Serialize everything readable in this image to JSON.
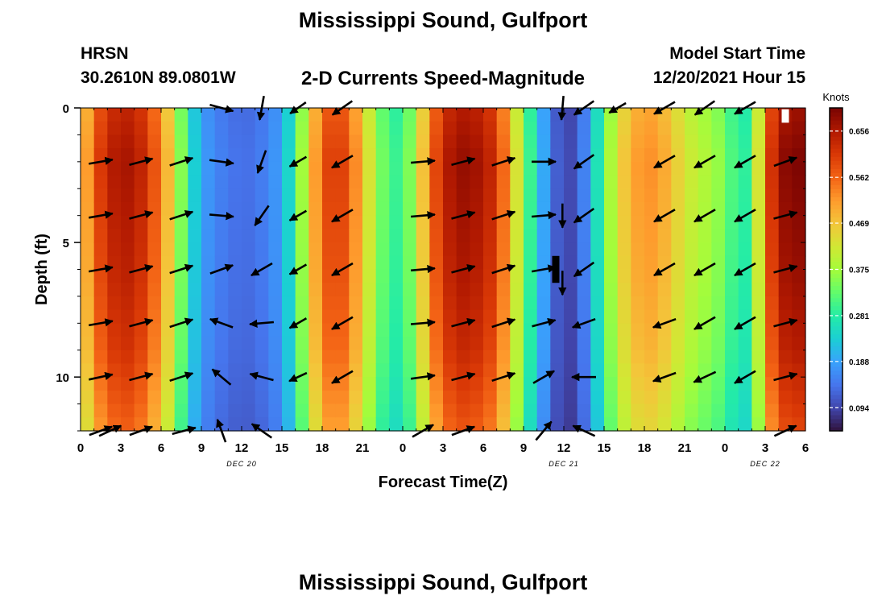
{
  "header": {
    "title": "Mississippi Sound, Gulfport",
    "station": "HRSN",
    "coords": "30.2610N  89.0801W",
    "subtitle": "2-D Currents Speed-Magnitude",
    "start_label": "Model Start Time",
    "start_value": "12/20/2021 Hour 15"
  },
  "footer": {
    "repeat_title": "Mississippi Sound, Gulfport"
  },
  "chart_data": {
    "type": "heatmap",
    "xlabel": "Forecast Time(Z)",
    "ylabel": "Depth (ft)",
    "xlim": [
      0,
      54
    ],
    "ylim": [
      0,
      12
    ],
    "y_inverted": true,
    "x_ticks": [
      0,
      3,
      6,
      9,
      12,
      15,
      18,
      21,
      24,
      27,
      30,
      33,
      36,
      39,
      42,
      45,
      48,
      51,
      54
    ],
    "x_tick_labels": [
      "0",
      "3",
      "6",
      "9",
      "12",
      "15",
      "18",
      "21",
      "0",
      "3",
      "6",
      "9",
      "12",
      "15",
      "18",
      "21",
      "0",
      "3",
      "6"
    ],
    "y_ticks": [
      0,
      5,
      10
    ],
    "y_tick_labels": [
      "0",
      "5",
      "10"
    ],
    "date_labels": [
      {
        "x": 12,
        "text": "DEC 20"
      },
      {
        "x": 36,
        "text": "DEC 21"
      },
      {
        "x": 51,
        "text": "DEC 22"
      }
    ],
    "colorbar": {
      "title": "Knots",
      "range": [
        0.047,
        0.703
      ],
      "tick_values": [
        0.094,
        0.188,
        0.281,
        0.375,
        0.469,
        0.562,
        0.656
      ],
      "tick_labels": [
        "0.094",
        "0.188",
        "0.281",
        "0.375",
        "0.469",
        "0.562",
        "0.656"
      ],
      "colors": [
        "#30123b",
        "#4145ab",
        "#4675ed",
        "#39a2fc",
        "#1bcfd4",
        "#24eca6",
        "#61fc6c",
        "#a4fc3b",
        "#d1e834",
        "#f3c63a",
        "#fe9b2d",
        "#f36315",
        "#d93806",
        "#b11901",
        "#7a0402"
      ]
    },
    "speed_profile": {
      "hours": [
        0,
        1,
        2,
        3,
        4,
        5,
        6,
        7,
        8,
        9,
        10,
        11,
        12,
        13,
        14,
        15,
        16,
        17,
        18,
        19,
        20,
        21,
        22,
        23,
        24,
        25,
        26,
        27,
        28,
        29,
        30,
        31,
        32,
        33,
        34,
        35,
        36,
        37,
        38,
        39,
        40,
        41,
        42,
        43,
        44,
        45,
        46,
        47,
        48,
        49,
        50,
        51,
        52,
        53,
        54
      ],
      "speeds": [
        0.45,
        0.58,
        0.64,
        0.67,
        0.66,
        0.62,
        0.54,
        0.43,
        0.28,
        0.19,
        0.16,
        0.145,
        0.135,
        0.14,
        0.16,
        0.19,
        0.3,
        0.45,
        0.58,
        0.62,
        0.58,
        0.48,
        0.38,
        0.3,
        0.3,
        0.4,
        0.55,
        0.64,
        0.68,
        0.68,
        0.66,
        0.62,
        0.5,
        0.36,
        0.24,
        0.15,
        0.09,
        0.11,
        0.2,
        0.33,
        0.44,
        0.5,
        0.53,
        0.52,
        0.48,
        0.43,
        0.4,
        0.38,
        0.35,
        0.28,
        0.3,
        0.56,
        0.68,
        0.7,
        0.7
      ]
    },
    "depth_factors": [
      {
        "depth": 0,
        "factor": 0.96
      },
      {
        "depth": 2,
        "factor": 1.0
      },
      {
        "depth": 6,
        "factor": 0.97
      },
      {
        "depth": 9,
        "factor": 0.93
      },
      {
        "depth": 12,
        "factor": 0.85
      }
    ],
    "vector_hours": [
      1.5,
      4.5,
      7.5,
      10.5,
      13.5,
      19.5,
      25.5,
      28.5,
      31.5,
      34.5,
      37.5,
      43.5,
      46.5,
      49.5,
      52.5
    ],
    "vector_depths": [
      0,
      2,
      4,
      6,
      8,
      10,
      12
    ],
    "vectors": [
      {
        "hour": 1.5,
        "depth": 0,
        "angle_deg": 0,
        "len": 0
      },
      {
        "hour": 1.5,
        "depth": 2,
        "angle_deg": 10,
        "len": 1
      },
      {
        "hour": 1.5,
        "depth": 4,
        "angle_deg": 10,
        "len": 1
      },
      {
        "hour": 1.5,
        "depth": 6,
        "angle_deg": 10,
        "len": 1
      },
      {
        "hour": 1.5,
        "depth": 8,
        "angle_deg": 10,
        "len": 1
      },
      {
        "hour": 1.5,
        "depth": 10,
        "angle_deg": 12,
        "len": 1
      },
      {
        "hour": 1.5,
        "depth": 12,
        "angle_deg": 20,
        "len": 1
      },
      {
        "hour": 4.5,
        "depth": 0,
        "angle_deg": 0,
        "len": 0
      },
      {
        "hour": 4.5,
        "depth": 2,
        "angle_deg": 15,
        "len": 1
      },
      {
        "hour": 4.5,
        "depth": 4,
        "angle_deg": 15,
        "len": 1
      },
      {
        "hour": 4.5,
        "depth": 6,
        "angle_deg": 15,
        "len": 1
      },
      {
        "hour": 4.5,
        "depth": 8,
        "angle_deg": 15,
        "len": 1
      },
      {
        "hour": 4.5,
        "depth": 10,
        "angle_deg": 15,
        "len": 1
      },
      {
        "hour": 4.5,
        "depth": 12,
        "angle_deg": 20,
        "len": 1
      },
      {
        "hour": 7.5,
        "depth": 0,
        "angle_deg": 0,
        "len": 0
      },
      {
        "hour": 7.5,
        "depth": 2,
        "angle_deg": 18,
        "len": 1
      },
      {
        "hour": 7.5,
        "depth": 4,
        "angle_deg": 18,
        "len": 1
      },
      {
        "hour": 7.5,
        "depth": 6,
        "angle_deg": 18,
        "len": 1
      },
      {
        "hour": 7.5,
        "depth": 8,
        "angle_deg": 18,
        "len": 1
      },
      {
        "hour": 7.5,
        "depth": 10,
        "angle_deg": 18,
        "len": 1
      },
      {
        "hour": 7.5,
        "depth": 12,
        "angle_deg": 0,
        "len": 0
      },
      {
        "hour": 10.5,
        "depth": 0,
        "angle_deg": -15,
        "len": 1
      },
      {
        "hour": 10.5,
        "depth": 2,
        "angle_deg": -8,
        "len": 1
      },
      {
        "hour": 10.5,
        "depth": 4,
        "angle_deg": -5,
        "len": 1
      },
      {
        "hour": 10.5,
        "depth": 6,
        "angle_deg": 20,
        "len": 1
      },
      {
        "hour": 10.5,
        "depth": 8,
        "angle_deg": 160,
        "len": 1
      },
      {
        "hour": 10.5,
        "depth": 10,
        "angle_deg": 140,
        "len": 1
      },
      {
        "hour": 10.5,
        "depth": 12,
        "angle_deg": 110,
        "len": 1
      },
      {
        "hour": 13.5,
        "depth": 0,
        "angle_deg": -100,
        "len": 1
      },
      {
        "hour": 13.5,
        "depth": 2,
        "angle_deg": -110,
        "len": 1
      },
      {
        "hour": 13.5,
        "depth": 4,
        "angle_deg": -125,
        "len": 1
      },
      {
        "hour": 13.5,
        "depth": 6,
        "angle_deg": -150,
        "len": 1
      },
      {
        "hour": 13.5,
        "depth": 8,
        "angle_deg": -175,
        "len": 1
      },
      {
        "hour": 13.5,
        "depth": 10,
        "angle_deg": 165,
        "len": 1
      },
      {
        "hour": 13.5,
        "depth": 12,
        "angle_deg": 145,
        "len": 1
      },
      {
        "hour": 19.5,
        "depth": 0,
        "angle_deg": -145,
        "len": 1
      },
      {
        "hour": 19.5,
        "depth": 2,
        "angle_deg": -150,
        "len": 1
      },
      {
        "hour": 19.5,
        "depth": 4,
        "angle_deg": -150,
        "len": 1
      },
      {
        "hour": 19.5,
        "depth": 6,
        "angle_deg": -150,
        "len": 1
      },
      {
        "hour": 19.5,
        "depth": 8,
        "angle_deg": -150,
        "len": 1
      },
      {
        "hour": 19.5,
        "depth": 10,
        "angle_deg": -150,
        "len": 1
      },
      {
        "hour": 19.5,
        "depth": 12,
        "angle_deg": 0,
        "len": 0
      },
      {
        "hour": 25.5,
        "depth": 0,
        "angle_deg": 0,
        "len": 0
      },
      {
        "hour": 25.5,
        "depth": 2,
        "angle_deg": 5,
        "len": 1
      },
      {
        "hour": 25.5,
        "depth": 4,
        "angle_deg": 5,
        "len": 1
      },
      {
        "hour": 25.5,
        "depth": 6,
        "angle_deg": 5,
        "len": 1
      },
      {
        "hour": 25.5,
        "depth": 8,
        "angle_deg": 5,
        "len": 1
      },
      {
        "hour": 25.5,
        "depth": 10,
        "angle_deg": 8,
        "len": 1
      },
      {
        "hour": 25.5,
        "depth": 12,
        "angle_deg": 30,
        "len": 1
      },
      {
        "hour": 28.5,
        "depth": 0,
        "angle_deg": 0,
        "len": 0
      },
      {
        "hour": 28.5,
        "depth": 2,
        "angle_deg": 15,
        "len": 1
      },
      {
        "hour": 28.5,
        "depth": 4,
        "angle_deg": 15,
        "len": 1
      },
      {
        "hour": 28.5,
        "depth": 6,
        "angle_deg": 15,
        "len": 1
      },
      {
        "hour": 28.5,
        "depth": 8,
        "angle_deg": 15,
        "len": 1
      },
      {
        "hour": 28.5,
        "depth": 10,
        "angle_deg": 15,
        "len": 1
      },
      {
        "hour": 28.5,
        "depth": 12,
        "angle_deg": 20,
        "len": 1
      },
      {
        "hour": 31.5,
        "depth": 0,
        "angle_deg": 0,
        "len": 0
      },
      {
        "hour": 31.5,
        "depth": 2,
        "angle_deg": 18,
        "len": 1
      },
      {
        "hour": 31.5,
        "depth": 4,
        "angle_deg": 18,
        "len": 1
      },
      {
        "hour": 31.5,
        "depth": 6,
        "angle_deg": 18,
        "len": 1
      },
      {
        "hour": 31.5,
        "depth": 8,
        "angle_deg": 18,
        "len": 1
      },
      {
        "hour": 31.5,
        "depth": 10,
        "angle_deg": 18,
        "len": 1
      },
      {
        "hour": 31.5,
        "depth": 12,
        "angle_deg": 0,
        "len": 0
      },
      {
        "hour": 34.5,
        "depth": 0,
        "angle_deg": 0,
        "len": 0
      },
      {
        "hour": 34.5,
        "depth": 2,
        "angle_deg": 0,
        "len": 1
      },
      {
        "hour": 34.5,
        "depth": 4,
        "angle_deg": 5,
        "len": 1
      },
      {
        "hour": 34.5,
        "depth": 6,
        "angle_deg": 10,
        "len": 1
      },
      {
        "hour": 34.5,
        "depth": 8,
        "angle_deg": 15,
        "len": 1
      },
      {
        "hour": 34.5,
        "depth": 10,
        "angle_deg": 30,
        "len": 1
      },
      {
        "hour": 34.5,
        "depth": 12,
        "angle_deg": 50,
        "len": 1
      },
      {
        "hour": 37.5,
        "depth": 0,
        "angle_deg": -145,
        "len": 1
      },
      {
        "hour": 37.5,
        "depth": 2,
        "angle_deg": -145,
        "len": 1
      },
      {
        "hour": 37.5,
        "depth": 4,
        "angle_deg": -145,
        "len": 1
      },
      {
        "hour": 37.5,
        "depth": 6,
        "angle_deg": -145,
        "len": 1
      },
      {
        "hour": 37.5,
        "depth": 8,
        "angle_deg": -160,
        "len": 1
      },
      {
        "hour": 37.5,
        "depth": 10,
        "angle_deg": 180,
        "len": 1
      },
      {
        "hour": 37.5,
        "depth": 12,
        "angle_deg": 155,
        "len": 1
      },
      {
        "hour": 43.5,
        "depth": 0,
        "angle_deg": -150,
        "len": 1
      },
      {
        "hour": 43.5,
        "depth": 2,
        "angle_deg": -150,
        "len": 1
      },
      {
        "hour": 43.5,
        "depth": 4,
        "angle_deg": -150,
        "len": 1
      },
      {
        "hour": 43.5,
        "depth": 6,
        "angle_deg": -150,
        "len": 1
      },
      {
        "hour": 43.5,
        "depth": 8,
        "angle_deg": -160,
        "len": 1
      },
      {
        "hour": 43.5,
        "depth": 10,
        "angle_deg": -160,
        "len": 1
      },
      {
        "hour": 43.5,
        "depth": 12,
        "angle_deg": 0,
        "len": 0
      },
      {
        "hour": 46.5,
        "depth": 0,
        "angle_deg": -145,
        "len": 1
      },
      {
        "hour": 46.5,
        "depth": 2,
        "angle_deg": -150,
        "len": 1
      },
      {
        "hour": 46.5,
        "depth": 4,
        "angle_deg": -150,
        "len": 1
      },
      {
        "hour": 46.5,
        "depth": 6,
        "angle_deg": -150,
        "len": 1
      },
      {
        "hour": 46.5,
        "depth": 8,
        "angle_deg": -150,
        "len": 1
      },
      {
        "hour": 46.5,
        "depth": 10,
        "angle_deg": -155,
        "len": 1
      },
      {
        "hour": 46.5,
        "depth": 12,
        "angle_deg": 0,
        "len": 0
      },
      {
        "hour": 49.5,
        "depth": 0,
        "angle_deg": -150,
        "len": 1
      },
      {
        "hour": 49.5,
        "depth": 2,
        "angle_deg": -150,
        "len": 1
      },
      {
        "hour": 49.5,
        "depth": 4,
        "angle_deg": -150,
        "len": 1
      },
      {
        "hour": 49.5,
        "depth": 6,
        "angle_deg": -150,
        "len": 1
      },
      {
        "hour": 49.5,
        "depth": 8,
        "angle_deg": -150,
        "len": 1
      },
      {
        "hour": 49.5,
        "depth": 10,
        "angle_deg": -150,
        "len": 1
      },
      {
        "hour": 49.5,
        "depth": 12,
        "angle_deg": 0,
        "len": 0
      },
      {
        "hour": 52.5,
        "depth": 0,
        "angle_deg": 0,
        "len": 0
      },
      {
        "hour": 52.5,
        "depth": 2,
        "angle_deg": 20,
        "len": 1
      },
      {
        "hour": 52.5,
        "depth": 4,
        "angle_deg": 15,
        "len": 1
      },
      {
        "hour": 52.5,
        "depth": 6,
        "angle_deg": 15,
        "len": 1
      },
      {
        "hour": 52.5,
        "depth": 8,
        "angle_deg": 15,
        "len": 1
      },
      {
        "hour": 52.5,
        "depth": 10,
        "angle_deg": 15,
        "len": 1
      },
      {
        "hour": 52.5,
        "depth": 12,
        "angle_deg": 25,
        "len": 1
      }
    ],
    "extra_vectors": [
      {
        "hour": 2.2,
        "depth": 12,
        "angle_deg": 25,
        "len": 1
      },
      {
        "hour": 7.7,
        "depth": 12,
        "angle_deg": 15,
        "len": 1
      },
      {
        "hour": 16.2,
        "depth": 0,
        "angle_deg": -145,
        "len": 0.8
      },
      {
        "hour": 16.2,
        "depth": 2,
        "angle_deg": -150,
        "len": 0.8
      },
      {
        "hour": 16.2,
        "depth": 4,
        "angle_deg": -150,
        "len": 0.8
      },
      {
        "hour": 16.2,
        "depth": 6,
        "angle_deg": -150,
        "len": 0.8
      },
      {
        "hour": 16.2,
        "depth": 8,
        "angle_deg": -150,
        "len": 0.8
      },
      {
        "hour": 16.2,
        "depth": 10,
        "angle_deg": -155,
        "len": 0.8
      },
      {
        "hour": 35.9,
        "depth": 0,
        "angle_deg": -95,
        "len": 1
      },
      {
        "hour": 35.9,
        "depth": 4,
        "angle_deg": -90,
        "len": 1
      },
      {
        "hour": 35.9,
        "depth": 6.5,
        "angle_deg": -90,
        "len": 1
      },
      {
        "hour": 40.0,
        "depth": 0,
        "angle_deg": -150,
        "len": 0.8
      }
    ],
    "markers": [
      {
        "hour": 52.5,
        "depth_from": 0.05,
        "depth_to": 0.55,
        "color": "#ffffff"
      },
      {
        "hour": 35.4,
        "depth_from": 5.5,
        "depth_to": 6.5,
        "color": "#000000"
      }
    ]
  }
}
